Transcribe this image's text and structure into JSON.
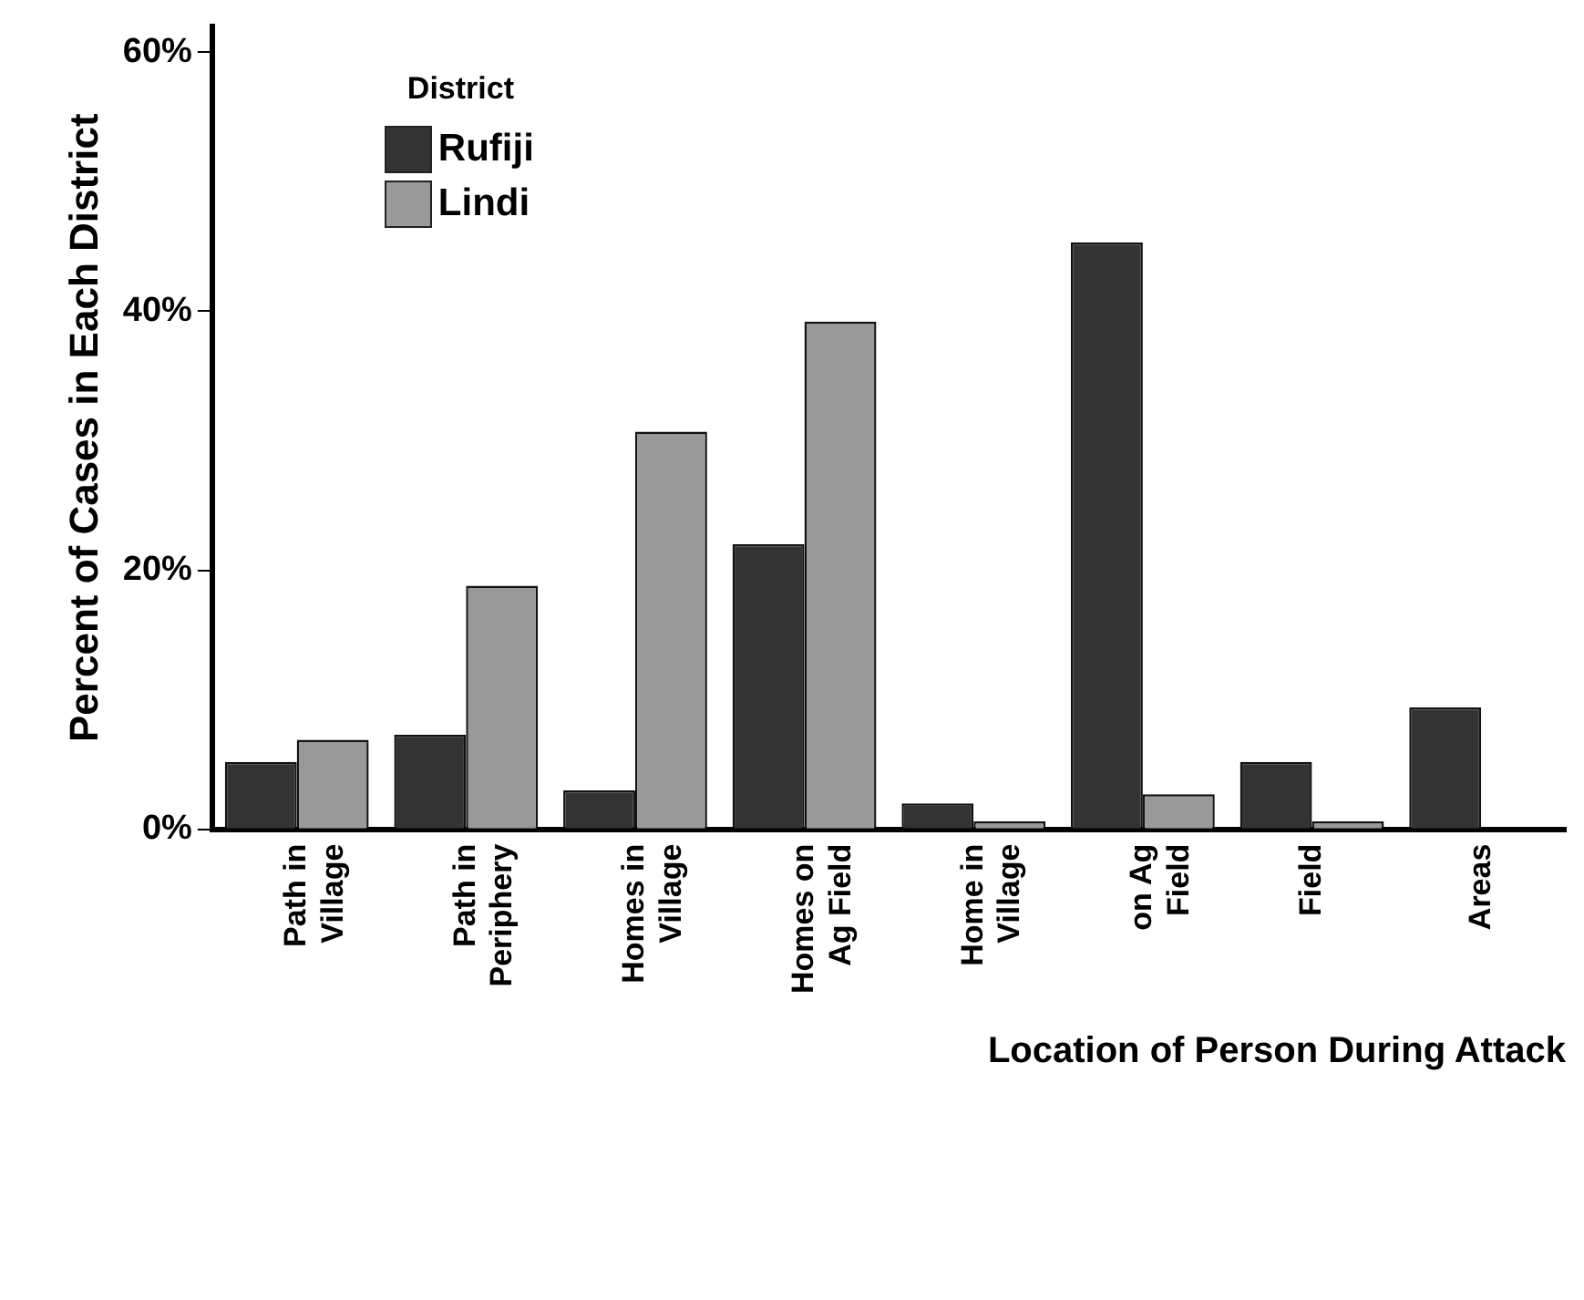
{
  "chart_data": {
    "type": "bar",
    "xlabel": "Location of Person During Attack",
    "ylabel": "Percent of Cases in Each District",
    "legend_title": "District",
    "legend": "top left",
    "grid": false,
    "categories": [
      "Path in Village",
      "Path in Periphery",
      "Homes in Village",
      "Homes on Ag Field",
      "Home in Village",
      "on Ag Field",
      "Field",
      "Areas"
    ],
    "series": [
      {
        "name": "Rufiji",
        "color": "#333333",
        "values": [
          5.2,
          7.3,
          3.0,
          22.0,
          2.0,
          45.3,
          5.2,
          9.4
        ]
      },
      {
        "name": "Lindi",
        "color": "#999999",
        "values": [
          6.9,
          18.8,
          30.7,
          39.2,
          0.6,
          2.7,
          0.6,
          0
        ]
      }
    ],
    "ylim": [
      0,
      62
    ],
    "yticks": [
      {
        "value": 0,
        "label": "0%"
      },
      {
        "value": 20,
        "label": "20%"
      },
      {
        "value": 40,
        "label": "40%"
      },
      {
        "value": 60,
        "label": "60%"
      }
    ]
  }
}
